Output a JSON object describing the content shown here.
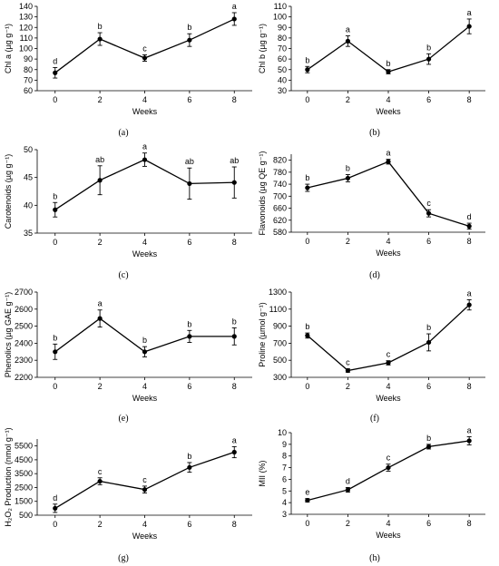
{
  "figure": {
    "captions": [
      "(a)",
      "(b)",
      "(c)",
      "(d)",
      "(e)",
      "(f)",
      "(g)",
      "(h)"
    ]
  },
  "chart_data": [
    {
      "type": "line",
      "panel": "(a)",
      "xlabel": "Weeks",
      "ylabel": "Chl a (µg g⁻¹)",
      "x": [
        0,
        2,
        4,
        6,
        8
      ],
      "values": [
        77,
        109,
        91,
        108,
        128
      ],
      "errors": [
        5,
        6,
        3,
        6,
        6
      ],
      "letters": [
        "d",
        "b",
        "c",
        "b",
        "a"
      ],
      "xlim": [
        -0.8,
        8.8
      ],
      "ylim": [
        60,
        140
      ],
      "yticks": [
        60,
        70,
        80,
        90,
        100,
        110,
        120,
        130,
        140
      ],
      "xticks": [
        0,
        2,
        4,
        6,
        8
      ],
      "grid": false
    },
    {
      "type": "line",
      "panel": "(b)",
      "xlabel": "Weeks",
      "ylabel": "Chl b (µg g⁻¹)",
      "x": [
        0,
        2,
        4,
        6,
        8
      ],
      "values": [
        50,
        77,
        48,
        60,
        91
      ],
      "errors": [
        3,
        5,
        2,
        5,
        7
      ],
      "letters": [
        "b",
        "a",
        "b",
        "b",
        "a"
      ],
      "xlim": [
        -0.8,
        8.8
      ],
      "ylim": [
        30,
        110
      ],
      "yticks": [
        30,
        40,
        50,
        60,
        70,
        80,
        90,
        100,
        110
      ],
      "xticks": [
        0,
        2,
        4,
        6,
        8
      ],
      "grid": false
    },
    {
      "type": "line",
      "panel": "(c)",
      "xlabel": "Weeks",
      "ylabel": "Carotenoids (µg g⁻¹)",
      "x": [
        0,
        2,
        4,
        6,
        8
      ],
      "values": [
        39.2,
        44.5,
        48.2,
        43.9,
        44.1
      ],
      "errors": [
        1.3,
        2.6,
        1.2,
        2.8,
        2.8
      ],
      "letters": [
        "b",
        "ab",
        "a",
        "ab",
        "ab"
      ],
      "xlim": [
        -0.8,
        8.8
      ],
      "ylim": [
        35,
        50
      ],
      "yticks": [
        35,
        40,
        45,
        50
      ],
      "xticks": [
        0,
        2,
        4,
        6,
        8
      ],
      "grid": false
    },
    {
      "type": "line",
      "panel": "(d)",
      "xlabel": "Weeks",
      "ylabel": "Flavonoids (µg QE g⁻¹)",
      "x": [
        0,
        2,
        4,
        6,
        8
      ],
      "values": [
        728,
        760,
        815,
        643,
        600
      ],
      "errors": [
        12,
        12,
        8,
        12,
        10
      ],
      "letters": [
        "b",
        "b",
        "a",
        "c",
        "d"
      ],
      "xlim": [
        -0.8,
        8.8
      ],
      "ylim": [
        580,
        840
      ],
      "yticks": [
        580,
        620,
        660,
        700,
        740,
        780,
        820
      ],
      "xticks": [
        0,
        2,
        4,
        6,
        8
      ],
      "grid": false
    },
    {
      "type": "line",
      "panel": "(e)",
      "xlabel": "Weeks",
      "ylabel": "Phenolics (µg GAE g⁻¹)",
      "x": [
        0,
        2,
        4,
        6,
        8
      ],
      "values": [
        2350,
        2545,
        2350,
        2440,
        2440
      ],
      "errors": [
        45,
        50,
        30,
        35,
        50
      ],
      "letters": [
        "b",
        "a",
        "b",
        "b",
        "b"
      ],
      "xlim": [
        -0.8,
        8.8
      ],
      "ylim": [
        2200,
        2700
      ],
      "yticks": [
        2200,
        2300,
        2400,
        2500,
        2600,
        2700
      ],
      "xticks": [
        0,
        2,
        4,
        6,
        8
      ],
      "grid": false
    },
    {
      "type": "line",
      "panel": "(f)",
      "xlabel": "Weeks",
      "ylabel": "Proline (µmol g⁻¹)",
      "x": [
        0,
        2,
        4,
        6,
        8
      ],
      "values": [
        790,
        380,
        470,
        710,
        1150
      ],
      "errors": [
        30,
        20,
        25,
        100,
        60
      ],
      "letters": [
        "b",
        "c",
        "c",
        "b",
        "a"
      ],
      "xlim": [
        -0.8,
        8.8
      ],
      "ylim": [
        300,
        1300
      ],
      "yticks": [
        300,
        500,
        700,
        900,
        1100,
        1300
      ],
      "xticks": [
        0,
        2,
        4,
        6,
        8
      ],
      "grid": false
    },
    {
      "type": "line",
      "panel": "(g)",
      "xlabel": "Weeks",
      "ylabel": "H₂O₂ Production (nmol g⁻¹)",
      "x": [
        0,
        2,
        4,
        6,
        8
      ],
      "values": [
        1000,
        2950,
        2350,
        3950,
        5050
      ],
      "errors": [
        300,
        250,
        250,
        350,
        400
      ],
      "letters": [
        "d",
        "c",
        "c",
        "b",
        "a"
      ],
      "xlim": [
        -0.8,
        8.8
      ],
      "ylim": [
        500,
        6000
      ],
      "yticks": [
        500,
        1500,
        2500,
        3500,
        4500,
        5500
      ],
      "xticks": [
        0,
        2,
        4,
        6,
        8
      ],
      "grid": false
    },
    {
      "type": "line",
      "panel": "(h)",
      "xlabel": "Weeks",
      "ylabel": "MII (%)",
      "x": [
        0,
        2,
        4,
        6,
        8
      ],
      "values": [
        4.2,
        5.1,
        7.0,
        8.8,
        9.3
      ],
      "errors": [
        0.15,
        0.2,
        0.3,
        0.2,
        0.35
      ],
      "letters": [
        "e",
        "d",
        "c",
        "b",
        "a"
      ],
      "xlim": [
        -0.8,
        8.8
      ],
      "ylim": [
        3,
        10
      ],
      "yticks": [
        3,
        4,
        5,
        6,
        7,
        8,
        9,
        10
      ],
      "xticks": [
        0,
        2,
        4,
        6,
        8
      ],
      "grid": false
    }
  ]
}
